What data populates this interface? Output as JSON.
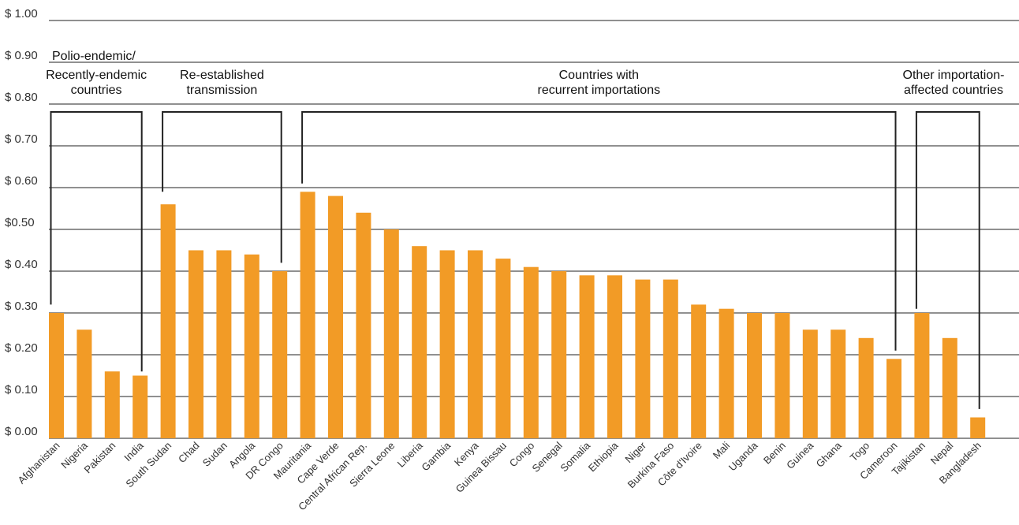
{
  "chart_data": {
    "type": "bar",
    "title": "",
    "xlabel": "",
    "ylabel": "",
    "ylim": [
      0,
      1
    ],
    "color": "#f29b26",
    "y_ticks": [
      0,
      0.1,
      0.2,
      0.3,
      0.4,
      0.5,
      0.6,
      0.7,
      0.8,
      0.9,
      1.0
    ],
    "y_tick_labels": [
      "$ 0.00",
      "$ 0.10",
      "$ 0.20",
      "$ 0.30",
      "$ 0.40",
      "$0.50",
      "$ 0.60",
      "$ 0.70",
      "$ 0.80",
      "$ 0.90",
      "$ 1.00"
    ],
    "categories": [
      "Afghanistan",
      "Nigeria",
      "Pakistan",
      "India",
      "South Sudan",
      "Chad",
      "Sudan",
      "Angola",
      "DR Congo",
      "Mauritania",
      "Cape Verde",
      "Central African Rep.",
      "Sierra Leone",
      "Liberia",
      "Gambia",
      "Kenya",
      "Guinea Bissau",
      "Congo",
      "Senegal",
      "Somalia",
      "Ethiopia",
      "Niger",
      "Burkina Faso",
      "Côte d'Ivoire",
      "Mali",
      "Uganda",
      "Benin",
      "Guinea",
      "Ghana",
      "Togo",
      "Cameroon",
      "Tajikistan",
      "Nepal",
      "Bangladesh"
    ],
    "values": [
      0.3,
      0.26,
      0.16,
      0.15,
      0.56,
      0.45,
      0.45,
      0.44,
      0.4,
      0.59,
      0.58,
      0.54,
      0.5,
      0.46,
      0.45,
      0.45,
      0.43,
      0.41,
      0.4,
      0.39,
      0.39,
      0.38,
      0.38,
      0.32,
      0.31,
      0.3,
      0.3,
      0.26,
      0.26,
      0.24,
      0.19,
      0.3,
      0.24,
      0.05
    ],
    "groups": [
      {
        "lines": [
          "Polio-endemic/",
          "Recently-endemic",
          "countries"
        ],
        "start": 0,
        "end": 3,
        "left_tick": 0.32,
        "right_tick": 0.16
      },
      {
        "lines": [
          "Re-established",
          "transmission"
        ],
        "start": 4,
        "end": 8,
        "left_tick": 0.59,
        "right_tick": 0.42
      },
      {
        "lines": [
          "Countries with",
          "recurrent importations"
        ],
        "start": 9,
        "end": 30,
        "left_tick": 0.61,
        "right_tick": 0.21
      },
      {
        "lines": [
          "Other importation-",
          "affected countries"
        ],
        "start": 31,
        "end": 33,
        "left_tick": 0.31,
        "right_tick": 0.07
      }
    ]
  }
}
